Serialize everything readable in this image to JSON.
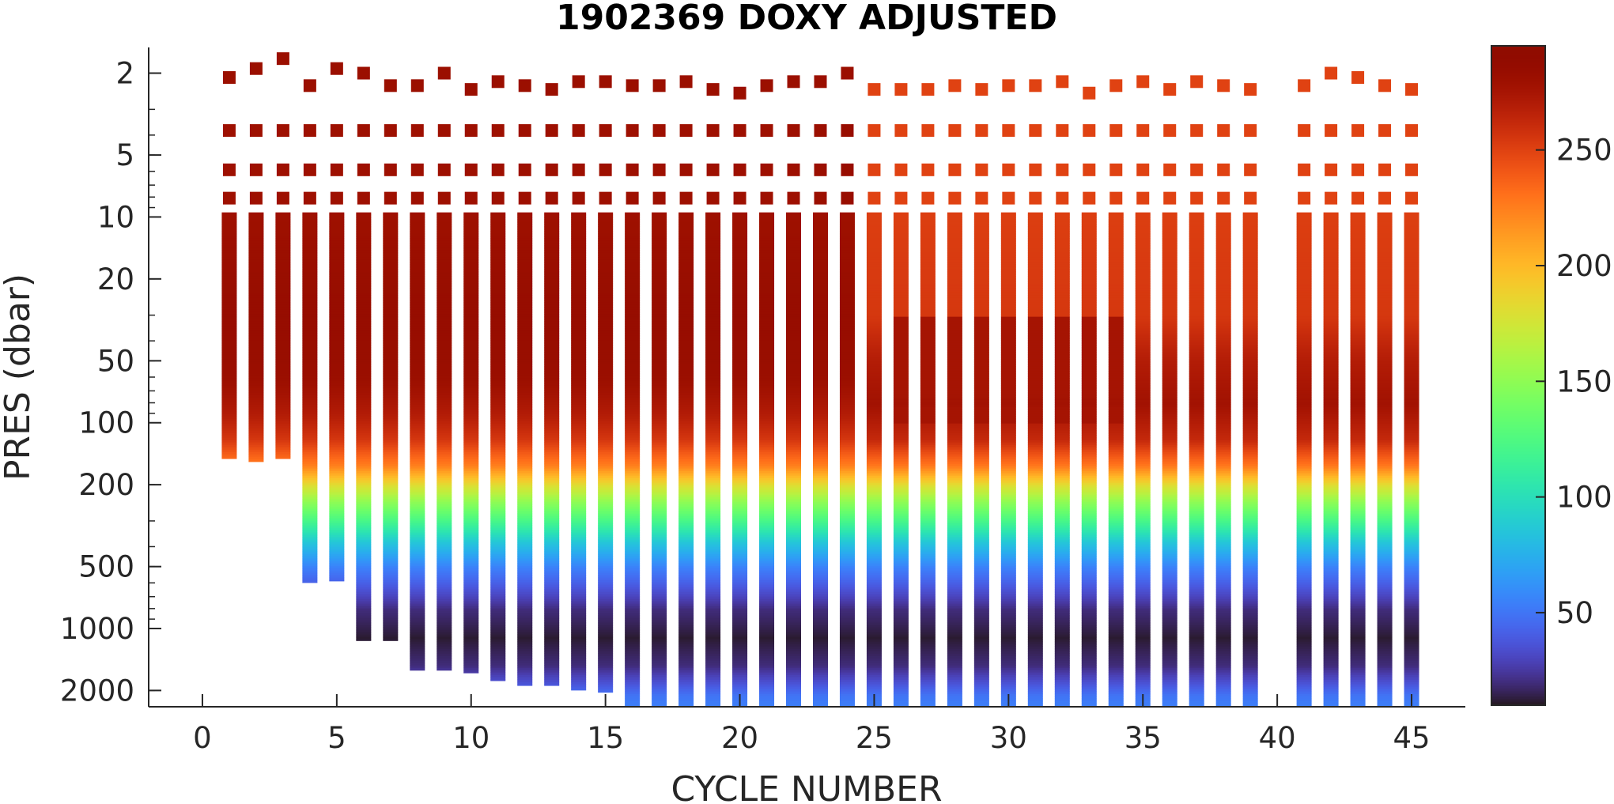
{
  "chart_data": {
    "type": "scatter",
    "title": "1902369  DOXY ADJUSTED",
    "xlabel": "CYCLE NUMBER",
    "ylabel": "PRES (dbar)",
    "xlim": [
      -2,
      47
    ],
    "ylim": [
      2400,
      1.5
    ],
    "y_scale": "log",
    "y_reversed": true,
    "grid": false,
    "x_ticks": [
      0,
      5,
      10,
      15,
      20,
      25,
      30,
      35,
      40,
      45
    ],
    "y_ticks": [
      2,
      5,
      10,
      20,
      50,
      100,
      200,
      500,
      1000,
      2000
    ],
    "x_tick_labels": [
      "0",
      "5",
      "10",
      "15",
      "20",
      "25",
      "30",
      "35",
      "40",
      "45"
    ],
    "y_tick_labels": [
      "2",
      "5",
      "10",
      "20",
      "50",
      "100",
      "200",
      "500",
      "1000",
      "2000"
    ],
    "colorbar": {
      "colormap": "turbo",
      "range": [
        10,
        295
      ],
      "ticks": [
        50,
        100,
        150,
        200,
        250
      ],
      "tick_labels": [
        "50",
        "100",
        "150",
        "200",
        "250"
      ]
    },
    "surface_pressures": [
      2.1,
      3.8,
      5.9,
      8.1
    ],
    "profiles": [
      {
        "cycle": 1,
        "max_pres": 150,
        "surface_doxy": 282,
        "upper_doxy": 280,
        "surf_pres": 2.1
      },
      {
        "cycle": 2,
        "max_pres": 155,
        "surface_doxy": 282,
        "upper_doxy": 280,
        "surf_pres": 1.9
      },
      {
        "cycle": 3,
        "max_pres": 150,
        "surface_doxy": 282,
        "upper_doxy": 280,
        "surf_pres": 1.7
      },
      {
        "cycle": 4,
        "max_pres": 600,
        "surface_doxy": 282,
        "upper_doxy": 280,
        "surf_pres": 2.3
      },
      {
        "cycle": 5,
        "max_pres": 590,
        "surface_doxy": 282,
        "upper_doxy": 280,
        "surf_pres": 1.9
      },
      {
        "cycle": 6,
        "max_pres": 1150,
        "surface_doxy": 282,
        "upper_doxy": 280,
        "surf_pres": 2.0
      },
      {
        "cycle": 7,
        "max_pres": 1150,
        "surface_doxy": 282,
        "upper_doxy": 280,
        "surf_pres": 2.3
      },
      {
        "cycle": 8,
        "max_pres": 1600,
        "surface_doxy": 282,
        "upper_doxy": 280,
        "surf_pres": 2.3
      },
      {
        "cycle": 9,
        "max_pres": 1600,
        "surface_doxy": 282,
        "upper_doxy": 280,
        "surf_pres": 2.0
      },
      {
        "cycle": 10,
        "max_pres": 1650,
        "surface_doxy": 282,
        "upper_doxy": 280,
        "surf_pres": 2.4
      },
      {
        "cycle": 11,
        "max_pres": 1800,
        "surface_doxy": 282,
        "upper_doxy": 280,
        "surf_pres": 2.2
      },
      {
        "cycle": 12,
        "max_pres": 1900,
        "surface_doxy": 282,
        "upper_doxy": 280,
        "surf_pres": 2.3
      },
      {
        "cycle": 13,
        "max_pres": 1900,
        "surface_doxy": 282,
        "upper_doxy": 280,
        "surf_pres": 2.4
      },
      {
        "cycle": 14,
        "max_pres": 2000,
        "surface_doxy": 282,
        "upper_doxy": 280,
        "surf_pres": 2.2
      },
      {
        "cycle": 15,
        "max_pres": 2050,
        "surface_doxy": 282,
        "upper_doxy": 280,
        "surf_pres": 2.2
      },
      {
        "cycle": 16,
        "max_pres": 2400,
        "surface_doxy": 282,
        "upper_doxy": 280,
        "surf_pres": 2.3
      },
      {
        "cycle": 17,
        "max_pres": 2400,
        "surface_doxy": 282,
        "upper_doxy": 280,
        "surf_pres": 2.3
      },
      {
        "cycle": 18,
        "max_pres": 2400,
        "surface_doxy": 282,
        "upper_doxy": 280,
        "surf_pres": 2.2
      },
      {
        "cycle": 19,
        "max_pres": 2400,
        "surface_doxy": 282,
        "upper_doxy": 280,
        "surf_pres": 2.4
      },
      {
        "cycle": 20,
        "max_pres": 2400,
        "surface_doxy": 282,
        "upper_doxy": 280,
        "surf_pres": 2.5
      },
      {
        "cycle": 21,
        "max_pres": 2400,
        "surface_doxy": 282,
        "upper_doxy": 280,
        "surf_pres": 2.3
      },
      {
        "cycle": 22,
        "max_pres": 2400,
        "surface_doxy": 282,
        "upper_doxy": 280,
        "surf_pres": 2.2
      },
      {
        "cycle": 23,
        "max_pres": 2400,
        "surface_doxy": 282,
        "upper_doxy": 282,
        "surf_pres": 2.2
      },
      {
        "cycle": 24,
        "max_pres": 2400,
        "surface_doxy": 282,
        "upper_doxy": 284,
        "surf_pres": 2.0
      },
      {
        "cycle": 25,
        "max_pres": 2400,
        "surface_doxy": 250,
        "upper_doxy": 250,
        "surf_pres": 2.4
      },
      {
        "cycle": 26,
        "max_pres": 2400,
        "surface_doxy": 250,
        "upper_doxy": 250,
        "surf_pres": 2.4
      },
      {
        "cycle": 27,
        "max_pres": 2400,
        "surface_doxy": 250,
        "upper_doxy": 250,
        "surf_pres": 2.4
      },
      {
        "cycle": 28,
        "max_pres": 2400,
        "surface_doxy": 250,
        "upper_doxy": 250,
        "surf_pres": 2.3
      },
      {
        "cycle": 29,
        "max_pres": 2400,
        "surface_doxy": 250,
        "upper_doxy": 250,
        "surf_pres": 2.4
      },
      {
        "cycle": 30,
        "max_pres": 2400,
        "surface_doxy": 250,
        "upper_doxy": 250,
        "surf_pres": 2.3
      },
      {
        "cycle": 31,
        "max_pres": 2400,
        "surface_doxy": 250,
        "upper_doxy": 250,
        "surf_pres": 2.3
      },
      {
        "cycle": 32,
        "max_pres": 2400,
        "surface_doxy": 250,
        "upper_doxy": 250,
        "surf_pres": 2.2
      },
      {
        "cycle": 33,
        "max_pres": 2400,
        "surface_doxy": 250,
        "upper_doxy": 250,
        "surf_pres": 2.5
      },
      {
        "cycle": 34,
        "max_pres": 2400,
        "surface_doxy": 250,
        "upper_doxy": 250,
        "surf_pres": 2.3
      },
      {
        "cycle": 35,
        "max_pres": 2400,
        "surface_doxy": 250,
        "upper_doxy": 250,
        "surf_pres": 2.2
      },
      {
        "cycle": 36,
        "max_pres": 2400,
        "surface_doxy": 250,
        "upper_doxy": 250,
        "surf_pres": 2.4
      },
      {
        "cycle": 37,
        "max_pres": 2400,
        "surface_doxy": 250,
        "upper_doxy": 250,
        "surf_pres": 2.2
      },
      {
        "cycle": 38,
        "max_pres": 2400,
        "surface_doxy": 250,
        "upper_doxy": 250,
        "surf_pres": 2.3
      },
      {
        "cycle": 39,
        "max_pres": 2400,
        "surface_doxy": 250,
        "upper_doxy": 250,
        "surf_pres": 2.4
      },
      {
        "cycle": 41,
        "max_pres": 2400,
        "surface_doxy": 250,
        "upper_doxy": 250,
        "surf_pres": 2.3
      },
      {
        "cycle": 42,
        "max_pres": 2400,
        "surface_doxy": 250,
        "upper_doxy": 250,
        "surf_pres": 2.0
      },
      {
        "cycle": 43,
        "max_pres": 2400,
        "surface_doxy": 250,
        "upper_doxy": 250,
        "surf_pres": 2.1
      },
      {
        "cycle": 44,
        "max_pres": 2400,
        "surface_doxy": 250,
        "upper_doxy": 250,
        "surf_pres": 2.3
      },
      {
        "cycle": 45,
        "max_pres": 2400,
        "surface_doxy": 250,
        "upper_doxy": 250,
        "surf_pres": 2.4
      }
    ],
    "typical_profile_doxy_vs_pres": [
      {
        "pres": 10,
        "doxy": 280
      },
      {
        "pres": 30,
        "doxy": 285
      },
      {
        "pres": 60,
        "doxy": 282
      },
      {
        "pres": 90,
        "doxy": 270
      },
      {
        "pres": 120,
        "doxy": 255
      },
      {
        "pres": 160,
        "doxy": 225
      },
      {
        "pres": 200,
        "doxy": 180
      },
      {
        "pres": 240,
        "doxy": 150
      },
      {
        "pres": 300,
        "doxy": 120
      },
      {
        "pres": 380,
        "doxy": 85
      },
      {
        "pres": 500,
        "doxy": 55
      },
      {
        "pres": 650,
        "doxy": 35
      },
      {
        "pres": 800,
        "doxy": 20
      },
      {
        "pres": 1100,
        "doxy": 12
      },
      {
        "pres": 1500,
        "doxy": 20
      },
      {
        "pres": 1800,
        "doxy": 35
      },
      {
        "pres": 2100,
        "doxy": 50
      },
      {
        "pres": 2400,
        "doxy": 55
      }
    ],
    "warm_profile_doxy_vs_pres": [
      {
        "pres": 10,
        "doxy": 252
      },
      {
        "pres": 30,
        "doxy": 255
      },
      {
        "pres": 50,
        "doxy": 270
      },
      {
        "pres": 80,
        "doxy": 278
      },
      {
        "pres": 120,
        "doxy": 262
      },
      {
        "pres": 160,
        "doxy": 228
      },
      {
        "pres": 200,
        "doxy": 180
      },
      {
        "pres": 240,
        "doxy": 150
      },
      {
        "pres": 300,
        "doxy": 120
      },
      {
        "pres": 380,
        "doxy": 85
      },
      {
        "pres": 500,
        "doxy": 55
      },
      {
        "pres": 650,
        "doxy": 35
      },
      {
        "pres": 800,
        "doxy": 20
      },
      {
        "pres": 1100,
        "doxy": 12
      },
      {
        "pres": 1500,
        "doxy": 20
      },
      {
        "pres": 1800,
        "doxy": 35
      },
      {
        "pres": 2100,
        "doxy": 50
      },
      {
        "pres": 2400,
        "doxy": 55
      }
    ]
  }
}
